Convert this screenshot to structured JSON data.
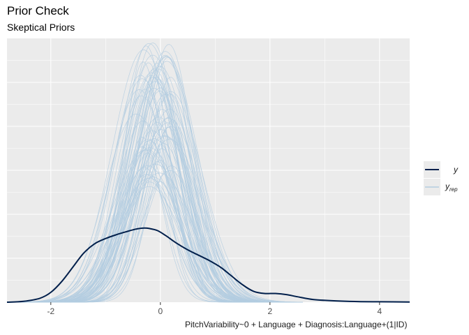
{
  "chart_data": {
    "type": "line",
    "title": "Prior Check",
    "subtitle": "Skeptical Priors",
    "xlabel": "PitchVariability~0 + Language + Diagnosis:Language+(1|ID)",
    "ylabel": "",
    "xlim": [
      -2.8,
      4.55
    ],
    "x_ticks": [
      -2,
      0,
      2,
      4
    ],
    "y_ticks_shown": false,
    "grid": true,
    "legend_position": "right",
    "legend": [
      {
        "key": "y",
        "label": "y",
        "color": "#011f4b"
      },
      {
        "key": "yrep",
        "label": "y",
        "subscript": "rep",
        "color": "#b3cde0"
      }
    ],
    "series": [
      {
        "key": "y",
        "x": [
          -2.8,
          -2.5,
          -2.2,
          -2.0,
          -1.8,
          -1.6,
          -1.4,
          -1.2,
          -1.0,
          -0.8,
          -0.6,
          -0.45,
          -0.3,
          -0.2,
          -0.05,
          0.1,
          0.3,
          0.5,
          0.7,
          0.9,
          1.1,
          1.3,
          1.5,
          1.7,
          1.9,
          2.1,
          2.3,
          2.5,
          2.8,
          3.2,
          3.6,
          4.0,
          4.55
        ],
        "y": [
          0.0,
          0.004,
          0.018,
          0.045,
          0.095,
          0.16,
          0.225,
          0.268,
          0.292,
          0.31,
          0.325,
          0.335,
          0.34,
          0.338,
          0.328,
          0.305,
          0.27,
          0.24,
          0.215,
          0.19,
          0.16,
          0.12,
          0.08,
          0.05,
          0.04,
          0.04,
          0.035,
          0.025,
          0.012,
          0.006,
          0.003,
          0.002,
          0.001
        ]
      }
    ],
    "replicates": {
      "label": "yrep",
      "count": 80,
      "center_range": [
        -0.35,
        0.2
      ],
      "sd_range": [
        0.35,
        0.62
      ],
      "peak_range": [
        0.55,
        1.2
      ]
    },
    "ylim": [
      0,
      1.21
    ]
  }
}
